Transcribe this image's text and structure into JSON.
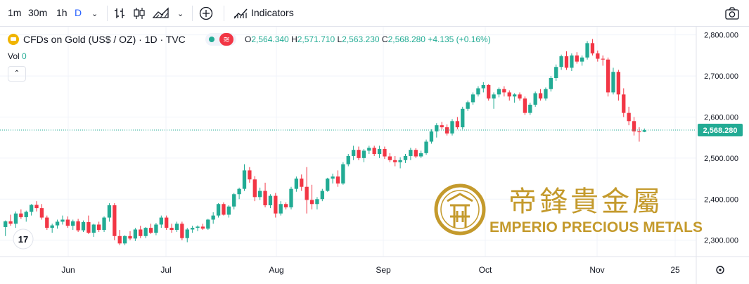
{
  "toolbar": {
    "intervals": [
      "1m",
      "30m",
      "1h",
      "D"
    ],
    "active_interval": "D",
    "indicators_label": "Indicators",
    "icons": [
      "chevron-down-icon",
      "bar-style-icon",
      "candle-style-icon",
      "area-style-icon",
      "chevron-down-icon",
      "add-icon",
      "indicators-icon",
      "camera-icon"
    ]
  },
  "legend": {
    "symbol": "CFDs on Gold (US$ / OZ) · 1D · TVC",
    "open_label": "O",
    "open": "2,564.340",
    "high_label": "H",
    "high": "2,571.710",
    "low_label": "L",
    "low": "2,563.230",
    "close_label": "C",
    "close": "2,568.280",
    "change": "+4.135 (+0.16%)",
    "vol_label": "Vol",
    "vol_value": "0"
  },
  "watermark": {
    "chinese": "帝鋒貴金屬",
    "english": "EMPERIO PRECIOUS METALS",
    "color": "#c49a2c"
  },
  "colors": {
    "up": "#22ab94",
    "down": "#f23645",
    "grid": "#f0f3fa",
    "axis_text": "#131722"
  },
  "chart_data": {
    "type": "candlestick",
    "y_axis": {
      "range": [
        2260,
        2820
      ],
      "ticks": [
        2300,
        2400,
        2500,
        2600,
        2700,
        2800
      ],
      "tick_labels": [
        "2,300.000",
        "2,400.000",
        "2,500.000",
        "2,600.000",
        "2,700.000",
        "2,800.000"
      ]
    },
    "x_axis": {
      "tick_labels": [
        "Jun",
        "Jul",
        "Aug",
        "Sep",
        "Oct",
        "Nov",
        "25"
      ]
    },
    "last_price": 2568.28,
    "last_price_label": "2,568.280",
    "candles": [
      [
        2332,
        2348,
        2310,
        2346
      ],
      [
        2346,
        2362,
        2335,
        2340
      ],
      [
        2340,
        2370,
        2330,
        2365
      ],
      [
        2365,
        2375,
        2352,
        2356
      ],
      [
        2356,
        2372,
        2345,
        2369
      ],
      [
        2369,
        2388,
        2360,
        2386
      ],
      [
        2386,
        2395,
        2370,
        2378
      ],
      [
        2378,
        2388,
        2350,
        2355
      ],
      [
        2355,
        2360,
        2325,
        2330
      ],
      [
        2330,
        2340,
        2318,
        2336
      ],
      [
        2336,
        2350,
        2328,
        2345
      ],
      [
        2345,
        2360,
        2338,
        2350
      ],
      [
        2350,
        2358,
        2330,
        2335
      ],
      [
        2335,
        2350,
        2325,
        2346
      ],
      [
        2346,
        2352,
        2320,
        2324
      ],
      [
        2324,
        2348,
        2320,
        2344
      ],
      [
        2344,
        2360,
        2315,
        2318
      ],
      [
        2318,
        2340,
        2308,
        2338
      ],
      [
        2338,
        2345,
        2320,
        2325
      ],
      [
        2325,
        2358,
        2320,
        2355
      ],
      [
        2355,
        2390,
        2345,
        2385
      ],
      [
        2385,
        2390,
        2300,
        2310
      ],
      [
        2310,
        2325,
        2288,
        2292
      ],
      [
        2292,
        2312,
        2288,
        2310
      ],
      [
        2310,
        2322,
        2300,
        2304
      ],
      [
        2304,
        2330,
        2298,
        2326
      ],
      [
        2326,
        2335,
        2305,
        2310
      ],
      [
        2310,
        2332,
        2305,
        2330
      ],
      [
        2330,
        2340,
        2315,
        2318
      ],
      [
        2318,
        2342,
        2312,
        2338
      ],
      [
        2338,
        2360,
        2330,
        2355
      ],
      [
        2355,
        2360,
        2325,
        2330
      ],
      [
        2330,
        2340,
        2318,
        2325
      ],
      [
        2325,
        2345,
        2320,
        2340
      ],
      [
        2340,
        2345,
        2300,
        2305
      ],
      [
        2305,
        2330,
        2295,
        2326
      ],
      [
        2326,
        2335,
        2318,
        2330
      ],
      [
        2330,
        2336,
        2322,
        2333
      ],
      [
        2333,
        2340,
        2325,
        2328
      ],
      [
        2328,
        2352,
        2325,
        2350
      ],
      [
        2350,
        2368,
        2340,
        2360
      ],
      [
        2360,
        2390,
        2355,
        2388
      ],
      [
        2388,
        2392,
        2360,
        2362
      ],
      [
        2362,
        2385,
        2355,
        2382
      ],
      [
        2382,
        2415,
        2375,
        2412
      ],
      [
        2412,
        2428,
        2400,
        2425
      ],
      [
        2425,
        2485,
        2420,
        2470
      ],
      [
        2470,
        2478,
        2440,
        2448
      ],
      [
        2448,
        2456,
        2395,
        2405
      ],
      [
        2405,
        2428,
        2398,
        2420
      ],
      [
        2420,
        2440,
        2380,
        2385
      ],
      [
        2385,
        2412,
        2378,
        2408
      ],
      [
        2408,
        2415,
        2355,
        2365
      ],
      [
        2365,
        2395,
        2360,
        2388
      ],
      [
        2388,
        2392,
        2375,
        2380
      ],
      [
        2380,
        2430,
        2375,
        2425
      ],
      [
        2425,
        2455,
        2418,
        2450
      ],
      [
        2450,
        2460,
        2420,
        2430
      ],
      [
        2430,
        2478,
        2365,
        2398
      ],
      [
        2398,
        2435,
        2375,
        2388
      ],
      [
        2388,
        2405,
        2375,
        2400
      ],
      [
        2400,
        2425,
        2395,
        2420
      ],
      [
        2420,
        2452,
        2418,
        2450
      ],
      [
        2450,
        2462,
        2438,
        2455
      ],
      [
        2455,
        2470,
        2430,
        2438
      ],
      [
        2438,
        2490,
        2435,
        2485
      ],
      [
        2485,
        2510,
        2480,
        2505
      ],
      [
        2505,
        2530,
        2495,
        2520
      ],
      [
        2520,
        2528,
        2495,
        2500
      ],
      [
        2500,
        2522,
        2490,
        2518
      ],
      [
        2518,
        2530,
        2510,
        2525
      ],
      [
        2525,
        2530,
        2505,
        2510
      ],
      [
        2510,
        2530,
        2500,
        2522
      ],
      [
        2522,
        2528,
        2498,
        2504
      ],
      [
        2504,
        2512,
        2490,
        2495
      ],
      [
        2495,
        2505,
        2480,
        2490
      ],
      [
        2490,
        2502,
        2475,
        2495
      ],
      [
        2495,
        2510,
        2488,
        2505
      ],
      [
        2505,
        2525,
        2495,
        2520
      ],
      [
        2520,
        2524,
        2500,
        2504
      ],
      [
        2504,
        2518,
        2500,
        2512
      ],
      [
        2512,
        2545,
        2508,
        2540
      ],
      [
        2540,
        2570,
        2535,
        2565
      ],
      [
        2565,
        2585,
        2550,
        2580
      ],
      [
        2580,
        2588,
        2570,
        2575
      ],
      [
        2575,
        2582,
        2555,
        2560
      ],
      [
        2560,
        2595,
        2555,
        2590
      ],
      [
        2590,
        2600,
        2570,
        2575
      ],
      [
        2575,
        2625,
        2570,
        2620
      ],
      [
        2620,
        2640,
        2615,
        2636
      ],
      [
        2636,
        2660,
        2630,
        2655
      ],
      [
        2655,
        2675,
        2650,
        2670
      ],
      [
        2670,
        2685,
        2660,
        2678
      ],
      [
        2678,
        2680,
        2640,
        2645
      ],
      [
        2645,
        2660,
        2620,
        2655
      ],
      [
        2655,
        2672,
        2648,
        2668
      ],
      [
        2668,
        2675,
        2650,
        2660
      ],
      [
        2660,
        2665,
        2640,
        2650
      ],
      [
        2650,
        2658,
        2635,
        2655
      ],
      [
        2655,
        2660,
        2640,
        2645
      ],
      [
        2645,
        2650,
        2605,
        2610
      ],
      [
        2610,
        2635,
        2605,
        2630
      ],
      [
        2630,
        2662,
        2625,
        2658
      ],
      [
        2658,
        2668,
        2640,
        2645
      ],
      [
        2645,
        2672,
        2640,
        2668
      ],
      [
        2668,
        2700,
        2662,
        2695
      ],
      [
        2695,
        2728,
        2688,
        2722
      ],
      [
        2722,
        2752,
        2715,
        2748
      ],
      [
        2748,
        2760,
        2715,
        2720
      ],
      [
        2720,
        2755,
        2712,
        2750
      ],
      [
        2750,
        2758,
        2730,
        2735
      ],
      [
        2735,
        2750,
        2725,
        2745
      ],
      [
        2745,
        2785,
        2740,
        2780
      ],
      [
        2780,
        2790,
        2750,
        2755
      ],
      [
        2755,
        2762,
        2735,
        2742
      ],
      [
        2742,
        2750,
        2725,
        2740
      ],
      [
        2740,
        2745,
        2650,
        2660
      ],
      [
        2660,
        2720,
        2655,
        2710
      ],
      [
        2710,
        2715,
        2640,
        2655
      ],
      [
        2655,
        2670,
        2600,
        2610
      ],
      [
        2610,
        2625,
        2580,
        2590
      ],
      [
        2590,
        2600,
        2555,
        2565
      ],
      [
        2565,
        2575,
        2540,
        2563
      ],
      [
        2564,
        2572,
        2563,
        2568
      ]
    ]
  }
}
